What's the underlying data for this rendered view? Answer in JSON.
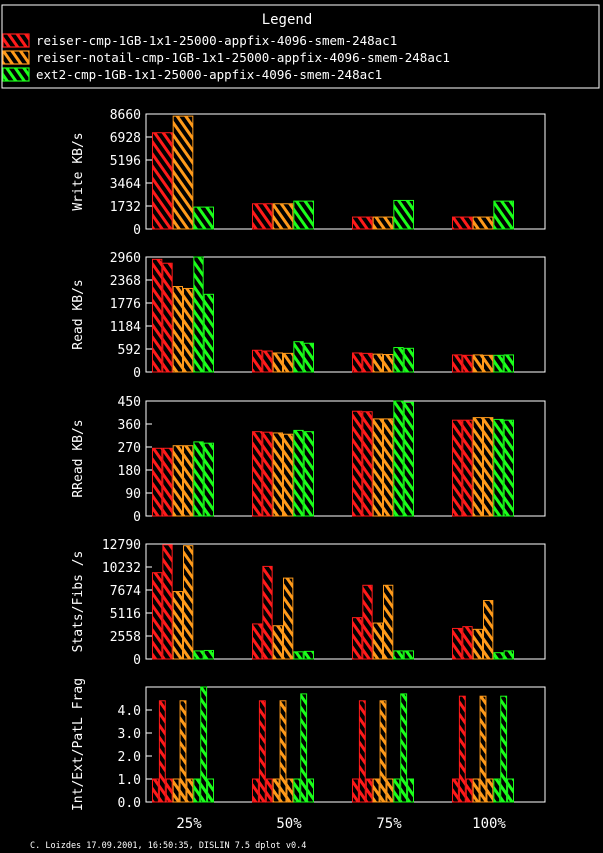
{
  "legend": {
    "title": "Legend",
    "entries": [
      {
        "label": "reiser-cmp-1GB-1x1-25000-appfix-4096-smem-248ac1",
        "color": "#ff1a1a"
      },
      {
        "label": "reiser-notail-cmp-1GB-1x1-25000-appfix-4096-smem-248ac1",
        "color": "#ff9a1a"
      },
      {
        "label": "ext2-cmp-1GB-1x1-25000-appfix-4096-smem-248ac1",
        "color": "#1aff1a"
      }
    ]
  },
  "footer": "C. Loizdes 17.09.2001, 16:50:35, DISLIN 7.5 dplot v0.4",
  "chart_data": [
    {
      "type": "bar",
      "ylabel": "Write KB/s",
      "categories": [
        "25%",
        "50%",
        "75%",
        "100%"
      ],
      "ylim": [
        0,
        8660
      ],
      "yticks": [
        "0",
        "1732",
        "3464",
        "5196",
        "6928",
        "8660"
      ],
      "series": [
        {
          "name": "reiser-cmp-1GB-1x1-25000-appfix-4096-smem-248ac1",
          "values": [
            [
              7250
            ],
            [
              1900
            ],
            [
              900
            ],
            [
              900
            ]
          ]
        },
        {
          "name": "reiser-notail-cmp-1GB-1x1-25000-appfix-4096-smem-248ac1",
          "values": [
            [
              8500
            ],
            [
              1900
            ],
            [
              900
            ],
            [
              900
            ]
          ]
        },
        {
          "name": "ext2-cmp-1GB-1x1-25000-appfix-4096-smem-248ac1",
          "values": [
            [
              1650
            ],
            [
              2100
            ],
            [
              2150
            ],
            [
              2100
            ]
          ]
        }
      ]
    },
    {
      "type": "bar",
      "ylabel": "Read KB/s",
      "categories": [
        "25%",
        "50%",
        "75%",
        "100%"
      ],
      "ylim": [
        0,
        2960
      ],
      "yticks": [
        "0",
        "592",
        "1184",
        "1776",
        "2368",
        "2960"
      ],
      "series": [
        {
          "name": "reiser-cmp-1GB-1x1-25000-appfix-4096-smem-248ac1",
          "values": [
            [
              2900,
              2800
            ],
            [
              560,
              540
            ],
            [
              490,
              480
            ],
            [
              440,
              430
            ]
          ]
        },
        {
          "name": "reiser-notail-cmp-1GB-1x1-25000-appfix-4096-smem-248ac1",
          "values": [
            [
              2200,
              2150
            ],
            [
              490,
              480
            ],
            [
              460,
              450
            ],
            [
              440,
              430
            ]
          ]
        },
        {
          "name": "ext2-cmp-1GB-1x1-25000-appfix-4096-smem-248ac1",
          "values": [
            [
              2960,
              2000
            ],
            [
              780,
              740
            ],
            [
              630,
              610
            ],
            [
              430,
              440
            ]
          ]
        }
      ]
    },
    {
      "type": "bar",
      "ylabel": "RRead KB/s",
      "categories": [
        "25%",
        "50%",
        "75%",
        "100%"
      ],
      "ylim": [
        0,
        450
      ],
      "yticks": [
        "0",
        "90",
        "180",
        "270",
        "360",
        "450"
      ],
      "series": [
        {
          "name": "reiser-cmp-1GB-1x1-25000-appfix-4096-smem-248ac1",
          "values": [
            [
              265,
              265
            ],
            [
              330,
              328
            ],
            [
              410,
              408
            ],
            [
              375,
              375
            ]
          ]
        },
        {
          "name": "reiser-notail-cmp-1GB-1x1-25000-appfix-4096-smem-248ac1",
          "values": [
            [
              275,
              275
            ],
            [
              325,
              320
            ],
            [
              380,
              380
            ],
            [
              385,
              385
            ]
          ]
        },
        {
          "name": "ext2-cmp-1GB-1x1-25000-appfix-4096-smem-248ac1",
          "values": [
            [
              290,
              285
            ],
            [
              335,
              330
            ],
            [
              450,
              445
            ],
            [
              378,
              375
            ]
          ]
        }
      ]
    },
    {
      "type": "bar",
      "ylabel": "Stats/Fibs /s",
      "categories": [
        "25%",
        "50%",
        "75%",
        "100%"
      ],
      "ylim": [
        0,
        12790
      ],
      "yticks": [
        "0",
        "2558",
        "5116",
        "7674",
        "10232",
        "12790"
      ],
      "series": [
        {
          "name": "reiser-cmp-1GB-1x1-25000-appfix-4096-smem-248ac1",
          "values": [
            [
              9600,
              12700
            ],
            [
              3900,
              10300
            ],
            [
              4600,
              8200
            ],
            [
              3400,
              3600
            ]
          ]
        },
        {
          "name": "reiser-notail-cmp-1GB-1x1-25000-appfix-4096-smem-248ac1",
          "values": [
            [
              7500,
              12600
            ],
            [
              3700,
              9000
            ],
            [
              4000,
              8200
            ],
            [
              3300,
              6500
            ]
          ]
        },
        {
          "name": "ext2-cmp-1GB-1x1-25000-appfix-4096-smem-248ac1",
          "values": [
            [
              900,
              950
            ],
            [
              800,
              850
            ],
            [
              900,
              900
            ],
            [
              700,
              900
            ]
          ]
        }
      ]
    },
    {
      "type": "bar",
      "ylabel": "Int/Ext/PatL Frag",
      "categories": [
        "25%",
        "50%",
        "75%",
        "100%"
      ],
      "ylim": [
        0,
        5.0
      ],
      "yticks": [
        "0.0",
        "1.0",
        "2.0",
        "3.0",
        "4.0"
      ],
      "series": [
        {
          "name": "reiser-cmp-1GB-1x1-25000-appfix-4096-smem-248ac1",
          "values": [
            [
              1.0,
              4.4,
              1.0
            ],
            [
              1.0,
              4.4,
              1.0
            ],
            [
              1.0,
              4.4,
              1.0
            ],
            [
              1.0,
              4.6,
              1.0
            ]
          ]
        },
        {
          "name": "reiser-notail-cmp-1GB-1x1-25000-appfix-4096-smem-248ac1",
          "values": [
            [
              1.0,
              4.4,
              1.0
            ],
            [
              1.0,
              4.4,
              1.0
            ],
            [
              1.0,
              4.4,
              1.0
            ],
            [
              1.0,
              4.6,
              1.0
            ]
          ]
        },
        {
          "name": "ext2-cmp-1GB-1x1-25000-appfix-4096-smem-248ac1",
          "values": [
            [
              1.0,
              5.0,
              1.0
            ],
            [
              1.0,
              4.7,
              1.0
            ],
            [
              1.0,
              4.7,
              1.0
            ],
            [
              1.0,
              4.6,
              1.0
            ]
          ]
        }
      ]
    }
  ]
}
